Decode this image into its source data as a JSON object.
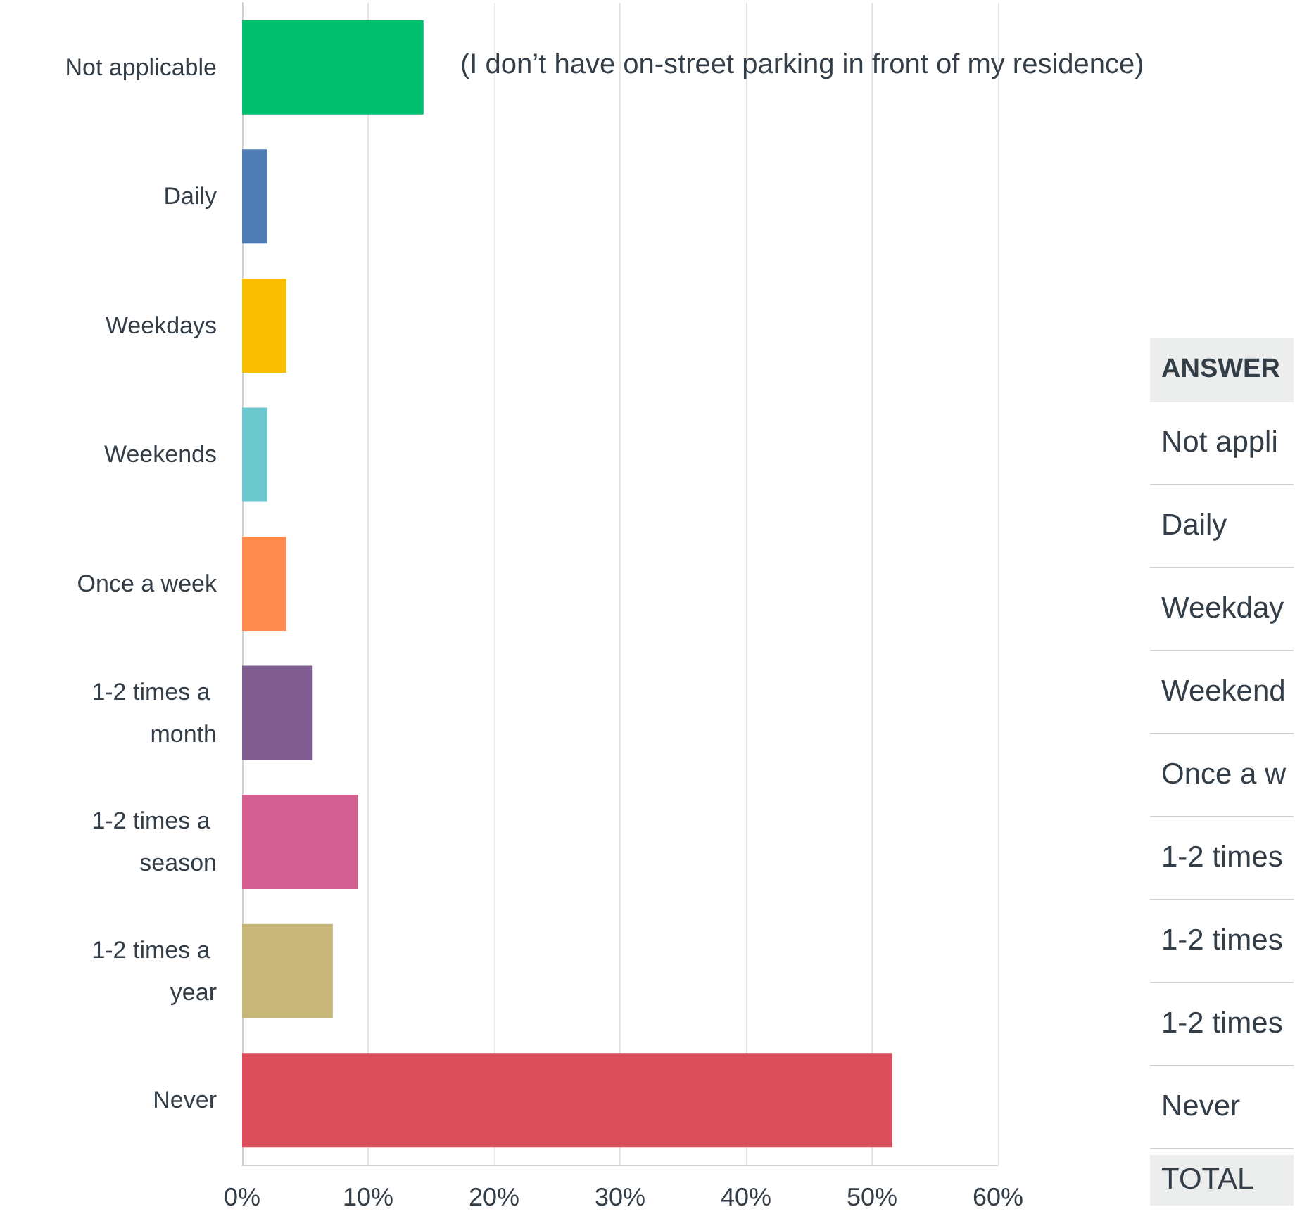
{
  "chart_data": [
    {
      "type": "bar",
      "orientation": "horizontal",
      "categories": [
        "Not applicable",
        "Daily",
        "Weekdays",
        "Weekends",
        "Once a week",
        "1-2 times a month",
        "1-2 times a season",
        "1-2 times a year",
        "Never"
      ],
      "values": [
        14.4,
        2.0,
        3.5,
        2.0,
        3.5,
        5.6,
        9.2,
        7.2,
        51.6
      ],
      "colors": [
        "#00bf6f",
        "#507cb6",
        "#f9be00",
        "#6bc8cd",
        "#ff8b4f",
        "#7f5d90",
        "#d25f90",
        "#c7b879",
        "#dc4e5c"
      ],
      "xlim": [
        0,
        60
      ],
      "xticks": [
        {
          "value": 0,
          "label": "0%"
        },
        {
          "value": 10,
          "label": "10%"
        },
        {
          "value": 20,
          "label": "20%"
        },
        {
          "value": 30,
          "label": "30%"
        },
        {
          "value": 40,
          "label": "40%"
        },
        {
          "value": 50,
          "label": "50%"
        },
        {
          "value": 60,
          "label": "60%"
        }
      ],
      "grid": "x",
      "annotations": [
        "(I don’t have on-street parking in front of my residence)"
      ]
    },
    {
      "type": "other",
      "annotations": [
        "ANSWER",
        "Not appli",
        "Daily",
        "Weekday",
        "Weekend",
        "Once a w",
        "1-2 times",
        "1-2 times",
        "1-2 times",
        "Never",
        "TOTAL"
      ]
    }
  ]
}
